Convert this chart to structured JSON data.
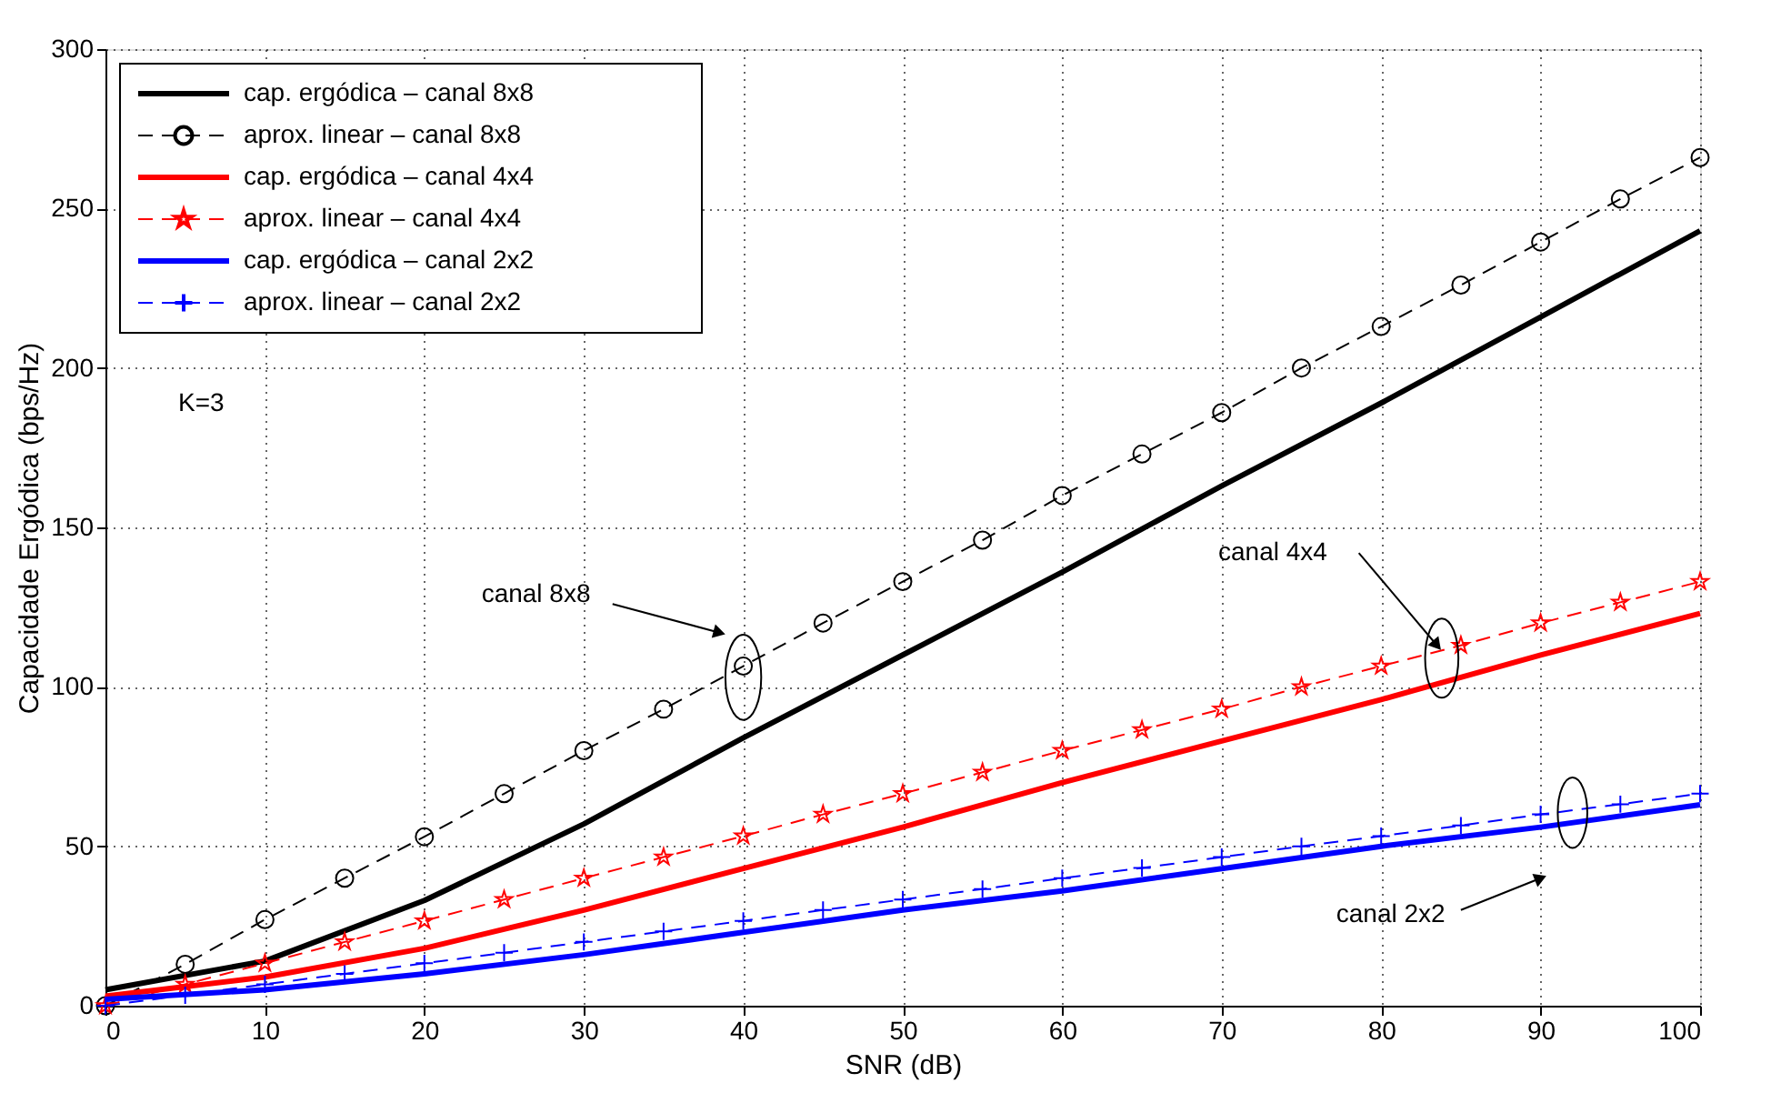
{
  "chart_data": {
    "type": "line",
    "xlabel": "SNR (dB)",
    "ylabel": "Capacidade Ergódica (bps/Hz)",
    "xlim": [
      0,
      100
    ],
    "ylim": [
      0,
      300
    ],
    "xticks": [
      0,
      10,
      20,
      30,
      40,
      50,
      60,
      70,
      80,
      90,
      100
    ],
    "yticks": [
      0,
      50,
      100,
      150,
      200,
      250,
      300
    ],
    "grid": true,
    "legend": "top left",
    "series": [
      {
        "name": "cap. ergódica – canal 8x8",
        "color": "#000000",
        "line_style": "solid",
        "marker": "none",
        "x": [
          0,
          10,
          20,
          30,
          40,
          50,
          60,
          70,
          80,
          90,
          100
        ],
        "values": [
          5,
          14,
          33,
          57,
          84,
          110,
          136,
          163,
          189,
          216,
          243
        ]
      },
      {
        "name": "aprox. linear – canal 8x8",
        "color": "#000000",
        "line_style": "dashed",
        "marker": "circle",
        "x": [
          0,
          5,
          10,
          15,
          20,
          25,
          30,
          35,
          40,
          45,
          50,
          55,
          60,
          65,
          70,
          75,
          80,
          85,
          90,
          95,
          100
        ],
        "values": [
          0,
          13,
          27,
          40,
          53,
          66.5,
          80,
          93,
          106.5,
          120,
          133,
          146,
          160,
          173,
          186,
          200,
          213,
          226,
          239.5,
          253,
          266
        ]
      },
      {
        "name": "cap. ergódica – canal 4x4",
        "color": "#ff0000",
        "line_style": "solid",
        "marker": "none",
        "x": [
          0,
          10,
          20,
          30,
          40,
          50,
          60,
          70,
          80,
          90,
          100
        ],
        "values": [
          3,
          9,
          18,
          30,
          43,
          56,
          70,
          83,
          96,
          110,
          123
        ]
      },
      {
        "name": "aprox. linear – canal 4x4",
        "color": "#ff0000",
        "line_style": "dashed",
        "marker": "star",
        "x": [
          0,
          5,
          10,
          15,
          20,
          25,
          30,
          35,
          40,
          45,
          50,
          55,
          60,
          65,
          70,
          75,
          80,
          85,
          90,
          95,
          100
        ],
        "values": [
          0,
          6.7,
          13.3,
          20,
          26.6,
          33.3,
          40,
          46.6,
          53.2,
          60,
          66.5,
          73.2,
          80,
          86.5,
          93,
          100,
          106.5,
          113,
          120,
          126.5,
          133
        ]
      },
      {
        "name": "cap. ergódica – canal 2x2",
        "color": "#0000ff",
        "line_style": "solid",
        "marker": "none",
        "x": [
          0,
          10,
          20,
          30,
          40,
          50,
          60,
          70,
          80,
          90,
          100
        ],
        "values": [
          2,
          5,
          10,
          16,
          23,
          30,
          36,
          43,
          50,
          56,
          63
        ]
      },
      {
        "name": "aprox. linear – canal 2x2",
        "color": "#0000ff",
        "line_style": "dashed",
        "marker": "cross",
        "x": [
          0,
          5,
          10,
          15,
          20,
          25,
          30,
          35,
          40,
          45,
          50,
          55,
          60,
          65,
          70,
          75,
          80,
          85,
          90,
          95,
          100
        ],
        "values": [
          0,
          3.3,
          6.7,
          10,
          13.3,
          16.6,
          20,
          23.3,
          26.6,
          30,
          33.3,
          36.6,
          40,
          43.2,
          46.6,
          50,
          53.2,
          56.5,
          60,
          63.2,
          66.5
        ]
      }
    ],
    "annotations": [
      "K=3",
      {
        "text": "canal 8x8",
        "x": 38.5,
        "y": 117
      },
      {
        "text": "canal 4x4",
        "x": 83.5,
        "y": 113
      },
      {
        "text": "canal 2x2",
        "x": 90,
        "y": 40
      }
    ]
  }
}
